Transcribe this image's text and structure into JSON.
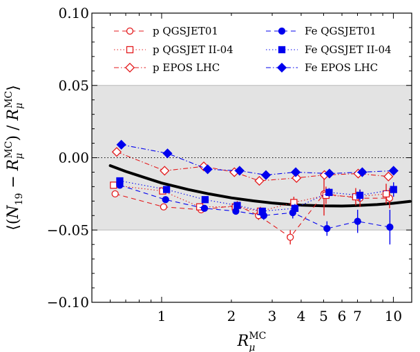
{
  "chart_data": {
    "type": "scatter",
    "xlabel": "R_μ^MC",
    "ylabel": "⟨(N_19 − R_μ^MC) / R_μ^MC⟩",
    "xscale": "log",
    "xlim": [
      0.5,
      12
    ],
    "ylim": [
      -0.1,
      0.1
    ],
    "yticks": [
      0.1,
      0.05,
      0.0,
      -0.05,
      -0.1
    ],
    "ytick_labels": [
      "0.10",
      "0.05",
      "0.00",
      "−0.05",
      "−0.10"
    ],
    "xticks": [
      1,
      2,
      3,
      4,
      5,
      6,
      7,
      10
    ],
    "xtick_labels": [
      "1",
      "2",
      "3",
      "4",
      "5",
      "6",
      "7",
      "10"
    ],
    "shaded_band": [
      -0.05,
      0.05
    ],
    "band_color": "#e3e3e3",
    "zero_line": 0.0,
    "legend_position": "top",
    "series": [
      {
        "name": "p QGSJET01",
        "color": "#e31a1c",
        "marker": "circle-open",
        "line": "dashed",
        "x": [
          0.63,
          1.02,
          1.48,
          2.12,
          2.62,
          3.59,
          5.02,
          7.18,
          9.63
        ],
        "y": [
          -0.025,
          -0.034,
          -0.036,
          -0.033,
          -0.04,
          -0.055,
          -0.025,
          -0.028,
          -0.028
        ],
        "err": [
          0.002,
          0.002,
          0.002,
          0.003,
          0.003,
          0.005,
          0.015,
          0.006,
          0.007
        ]
      },
      {
        "name": "p QGSJET II-04",
        "color": "#e31a1c",
        "marker": "square-open",
        "line": "dotted",
        "x": [
          0.62,
          1.01,
          1.46,
          2.08,
          2.67,
          3.72,
          5.12,
          6.88,
          9.31
        ],
        "y": [
          -0.019,
          -0.023,
          -0.034,
          -0.034,
          -0.037,
          -0.031,
          -0.026,
          -0.027,
          -0.025
        ],
        "err": [
          0.002,
          0.002,
          0.002,
          0.002,
          0.003,
          0.004,
          0.006,
          0.006,
          0.007
        ]
      },
      {
        "name": "p EPOS LHC",
        "color": "#e31a1c",
        "marker": "diamond-open",
        "line": "dashdot",
        "x": [
          0.64,
          1.03,
          1.52,
          2.06,
          2.64,
          3.82,
          5.04,
          7.05,
          9.52
        ],
        "y": [
          0.004,
          -0.009,
          -0.006,
          -0.01,
          -0.016,
          -0.014,
          -0.012,
          -0.011,
          -0.013
        ],
        "err": [
          0.002,
          0.002,
          0.002,
          0.002,
          0.002,
          0.002,
          0.002,
          0.003,
          0.003
        ]
      },
      {
        "name": "Fe QGSJET01",
        "color": "#0000ee",
        "marker": "circle-filled",
        "line": "dashed",
        "x": [
          0.66,
          1.04,
          1.53,
          2.09,
          2.76,
          3.68,
          5.17,
          7.01,
          9.66
        ],
        "y": [
          -0.019,
          -0.029,
          -0.035,
          -0.037,
          -0.04,
          -0.038,
          -0.049,
          -0.044,
          -0.048
        ],
        "err": [
          0.002,
          0.002,
          0.002,
          0.002,
          0.003,
          0.004,
          0.005,
          0.008,
          0.012
        ]
      },
      {
        "name": "Fe QGSJET II-04",
        "color": "#0000ee",
        "marker": "square-filled",
        "line": "dotted",
        "x": [
          0.66,
          1.05,
          1.54,
          2.12,
          2.72,
          3.76,
          5.28,
          7.17,
          10.02
        ],
        "y": [
          -0.016,
          -0.022,
          -0.029,
          -0.033,
          -0.037,
          -0.035,
          -0.024,
          -0.026,
          -0.022
        ],
        "err": [
          0.002,
          0.002,
          0.002,
          0.002,
          0.002,
          0.003,
          0.003,
          0.004,
          0.005
        ]
      },
      {
        "name": "Fe EPOS LHC",
        "color": "#0000ee",
        "marker": "diamond-filled",
        "line": "dashdot",
        "x": [
          0.67,
          1.06,
          1.58,
          2.17,
          2.82,
          3.79,
          5.3,
          7.34,
          10.02
        ],
        "y": [
          0.009,
          0.003,
          -0.008,
          -0.009,
          -0.012,
          -0.01,
          -0.011,
          -0.01,
          -0.009
        ],
        "err": [
          0.002,
          0.002,
          0.002,
          0.002,
          0.002,
          0.002,
          0.002,
          0.002,
          0.003
        ]
      }
    ],
    "fit_curve": {
      "color": "#000000",
      "x": [
        0.6,
        0.7,
        0.8,
        1.0,
        1.3,
        1.6,
        2.0,
        2.5,
        3.0,
        3.5,
        4.0,
        5.0,
        6.0,
        7.0,
        8.5,
        10.0,
        11.8
      ],
      "y": [
        -0.0055,
        -0.0095,
        -0.0125,
        -0.0175,
        -0.022,
        -0.025,
        -0.0278,
        -0.0299,
        -0.0313,
        -0.0322,
        -0.0328,
        -0.0333,
        -0.0334,
        -0.0331,
        -0.0324,
        -0.0315,
        -0.0302
      ]
    }
  }
}
